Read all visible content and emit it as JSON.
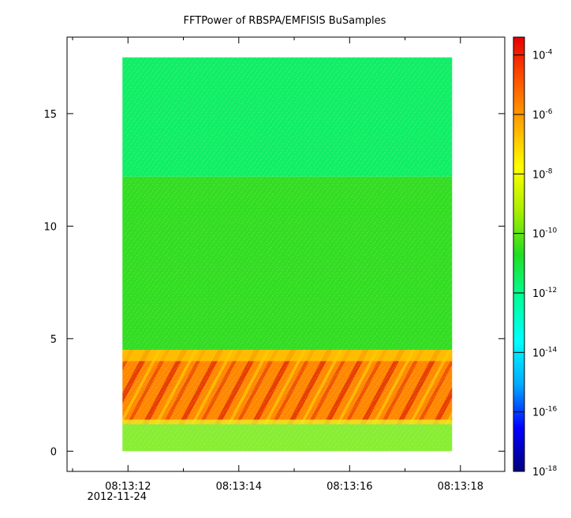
{
  "chart_data": {
    "type": "heatmap",
    "title": "FFTPower of RBSPA/EMFISIS  BuSamples",
    "xlabel": "",
    "ylabel": "",
    "x_ticks": [
      {
        "t": 12,
        "label": "08:13:12",
        "sublabel": "2012-11-24"
      },
      {
        "t": 14,
        "label": "08:13:14",
        "sublabel": ""
      },
      {
        "t": 16,
        "label": "08:13:16",
        "sublabel": ""
      },
      {
        "t": 18,
        "label": "08:13:18",
        "sublabel": ""
      }
    ],
    "x_minor_ticks": [
      11,
      13,
      15,
      17
    ],
    "xlim_seconds_after_081300": [
      10.9,
      18.8
    ],
    "data_x_range_seconds_after_081300": [
      11.9,
      17.85
    ],
    "y_ticks": [
      0,
      5,
      10,
      15
    ],
    "ylim": [
      -0.9,
      18.4
    ],
    "data_y_range": [
      0,
      17.5
    ],
    "colorbar": {
      "scale": "log",
      "range_exponent": [
        -18,
        -3.4
      ],
      "tick_exponents": [
        -4,
        -6,
        -8,
        -10,
        -12,
        -14,
        -16,
        -18
      ],
      "tick_base": "10",
      "colormap": [
        "#00007f",
        "#0000ff",
        "#00aaff",
        "#00ffff",
        "#00ff99",
        "#22dd22",
        "#aaee00",
        "#ffff00",
        "#ffaa00",
        "#ff5500",
        "#e60000"
      ]
    },
    "bands": [
      {
        "y_range": [
          0,
          1.2
        ],
        "level_exponent": -9.3,
        "description_color": "#88ee33"
      },
      {
        "y_range": [
          1.2,
          4.5
        ],
        "level_exponent": -6.5,
        "description_color": "#ff8800"
      },
      {
        "y_range": [
          4.5,
          12.2
        ],
        "level_exponent": -10.2,
        "description_color": "#33dd22"
      },
      {
        "y_range": [
          12.2,
          17.5
        ],
        "level_exponent": -11.2,
        "description_color": "#11ee66"
      }
    ],
    "colors": {
      "low_band": "#33dd22",
      "upper_band": "#11ee66",
      "wave_band": "#ff8800",
      "wave_streaks": "#e33300"
    },
    "grid": false,
    "legend": "colorbar-right"
  }
}
